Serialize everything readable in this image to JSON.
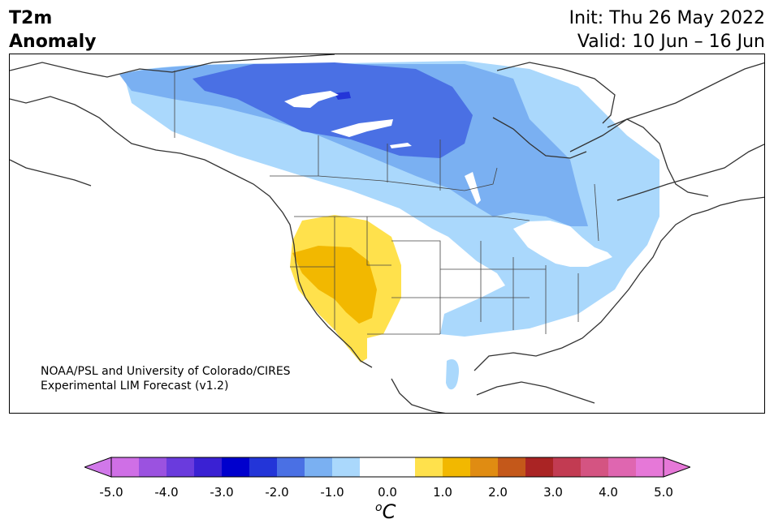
{
  "header": {
    "variable": "T2m",
    "subtitle": "Anomaly",
    "init": "Init: Thu 26 May 2022",
    "valid": "Valid: 10 Jun – 16 Jun"
  },
  "credit": {
    "line1": "NOAA/PSL and University of Colorado/CIRES",
    "line2": "Experimental LIM Forecast (v1.2)"
  },
  "colorbar": {
    "unit_base": "C",
    "unit_sup": "o",
    "ticks": [
      "-5.0",
      "-4.0",
      "-3.0",
      "-2.0",
      "-1.0",
      "0.0",
      "1.0",
      "2.0",
      "3.0",
      "4.0",
      "5.0"
    ],
    "colors": [
      "#cf6fe6",
      "#9b52e0",
      "#6a3bdd",
      "#3a21d3",
      "#0000cd",
      "#2335d8",
      "#4a70e4",
      "#7ab0f2",
      "#aad8fc",
      "#ffffff",
      "#ffffff",
      "#ffe14c",
      "#f2b800",
      "#e08c12",
      "#c4581a",
      "#aa2424",
      "#c23b52",
      "#d45482",
      "#df66b0",
      "#e678d8"
    ],
    "under_color": "#d178ea",
    "over_color": "#e678d8"
  },
  "map_layers": {
    "anomaly_colors": {
      "cold_light": "#aad8fc",
      "cold_mid": "#7ab0f2",
      "cold_strong": "#4a70e4",
      "cold_stronger": "#2335d8",
      "warm_light": "#ffe14c",
      "warm_mid": "#f2b800"
    }
  }
}
